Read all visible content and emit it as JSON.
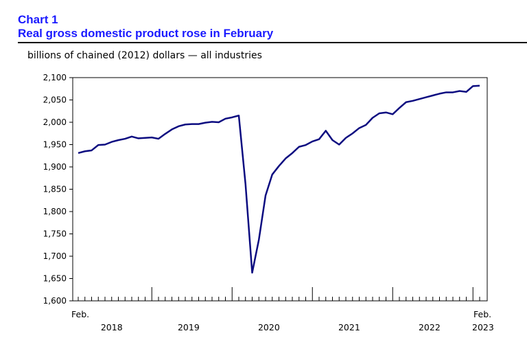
{
  "header": {
    "chart_number": "Chart 1",
    "title": "Real gross domestic product rose in February",
    "units": "billions of chained (2012) dollars — all industries"
  },
  "colors": {
    "title": "#1a1aff",
    "line": "#0b0b80"
  },
  "chart_data": {
    "type": "line",
    "title": "Real gross domestic product rose in February",
    "ylabel": "billions of chained (2012) dollars — all industries",
    "xlabel": "",
    "ylim": [
      1600,
      2100
    ],
    "yticks": [
      1600,
      1650,
      1700,
      1750,
      1800,
      1850,
      1900,
      1950,
      2000,
      2050,
      2100
    ],
    "ytick_labels": [
      "1,600",
      "1,650",
      "1,700",
      "1,750",
      "1,800",
      "1,850",
      "1,900",
      "1,950",
      "2,000",
      "2,050",
      "2,100"
    ],
    "x_start_label": "Feb.",
    "x_end_label_top": "Feb.",
    "x_end_label_bottom": "2023",
    "years": [
      "2018",
      "2019",
      "2020",
      "2021",
      "2022"
    ],
    "x": [
      "2018-02",
      "2018-03",
      "2018-04",
      "2018-05",
      "2018-06",
      "2018-07",
      "2018-08",
      "2018-09",
      "2018-10",
      "2018-11",
      "2018-12",
      "2019-01",
      "2019-02",
      "2019-03",
      "2019-04",
      "2019-05",
      "2019-06",
      "2019-07",
      "2019-08",
      "2019-09",
      "2019-10",
      "2019-11",
      "2019-12",
      "2020-01",
      "2020-02",
      "2020-03",
      "2020-04",
      "2020-05",
      "2020-06",
      "2020-07",
      "2020-08",
      "2020-09",
      "2020-10",
      "2020-11",
      "2020-12",
      "2021-01",
      "2021-02",
      "2021-03",
      "2021-04",
      "2021-05",
      "2021-06",
      "2021-07",
      "2021-08",
      "2021-09",
      "2021-10",
      "2021-11",
      "2021-12",
      "2022-01",
      "2022-02",
      "2022-03",
      "2022-04",
      "2022-05",
      "2022-06",
      "2022-07",
      "2022-08",
      "2022-09",
      "2022-10",
      "2022-11",
      "2022-12",
      "2023-01",
      "2023-02"
    ],
    "series": [
      {
        "name": "Real GDP, all industries",
        "values": [
          1931,
          1935,
          1937,
          1949,
          1950,
          1956,
          1960,
          1963,
          1968,
          1964,
          1965,
          1966,
          1963,
          1974,
          1984,
          1991,
          1995,
          1996,
          1996,
          1999,
          2001,
          2000,
          2008,
          2011,
          2015,
          1862,
          1663,
          1737,
          1836,
          1883,
          1902,
          1919,
          1931,
          1945,
          1949,
          1957,
          1962,
          1981,
          1960,
          1950,
          1965,
          1975,
          1987,
          1994,
          2010,
          2020,
          2022,
          2018,
          2032,
          2045,
          2048,
          2052,
          2056,
          2060,
          2064,
          2067,
          2067,
          2070,
          2068,
          2081,
          2082
        ]
      }
    ]
  }
}
